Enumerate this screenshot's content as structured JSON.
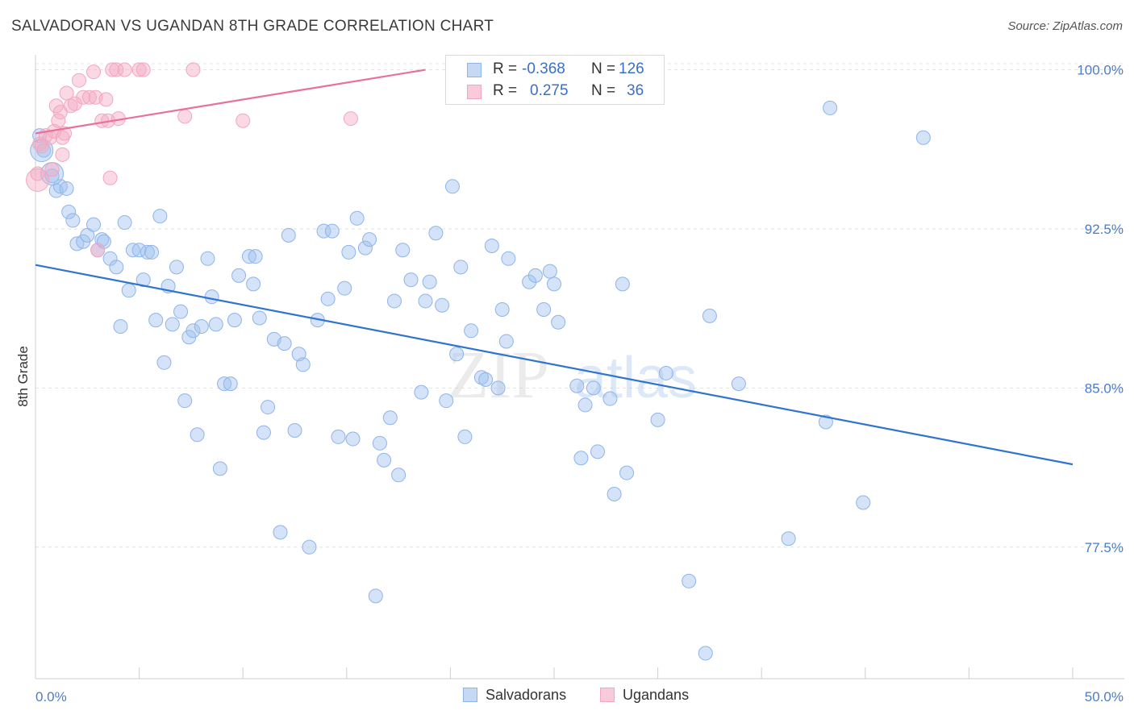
{
  "title": "SALVADORAN VS UGANDAN 8TH GRADE CORRELATION CHART",
  "source": "Source: ZipAtlas.com",
  "watermark": {
    "zip": "ZIP",
    "atlas": "atlas"
  },
  "legend_top": [
    {
      "r_label": "R =",
      "r_value": "-0.368",
      "n_label": "N =",
      "n_value": "126"
    },
    {
      "r_label": "R =",
      "r_value": "0.275",
      "n_label": "N =",
      "n_value": "36"
    }
  ],
  "chart_data": {
    "type": "scatter",
    "xlabel": "",
    "ylabel": "8th Grade",
    "xlim": [
      0,
      50
    ],
    "ylim": [
      71.3,
      100.4
    ],
    "x_tick_labels": {
      "left": "0.0%",
      "right": "50.0%"
    },
    "y_ticks": [
      100.0,
      92.5,
      85.0,
      77.5
    ],
    "y_tick_labels": [
      "100.0%",
      "92.5%",
      "85.0%",
      "77.5%"
    ],
    "grid": true,
    "legend_position": "bottom",
    "colors": {
      "salvadorans": "#8fb4ea",
      "ugandans": "#f2a6c0",
      "blue_line": "#2f74d0",
      "pink_line": "#e8709a"
    },
    "series": [
      {
        "name": "Salvadorans",
        "trend": {
          "x": [
            0,
            50
          ],
          "y": [
            90.8,
            81.4
          ]
        },
        "points": [
          [
            0.2,
            96.9
          ],
          [
            0.4,
            96.2
          ],
          [
            0.8,
            95.0
          ],
          [
            1.0,
            94.3
          ],
          [
            1.2,
            94.5
          ],
          [
            1.5,
            94.4
          ],
          [
            1.6,
            93.3
          ],
          [
            1.8,
            92.9
          ],
          [
            2.0,
            91.8
          ],
          [
            2.3,
            91.9
          ],
          [
            2.5,
            92.2
          ],
          [
            2.8,
            92.7
          ],
          [
            3.0,
            91.5
          ],
          [
            3.2,
            92.0
          ],
          [
            3.3,
            91.9
          ],
          [
            3.6,
            91.1
          ],
          [
            3.9,
            90.7
          ],
          [
            4.1,
            87.9
          ],
          [
            4.3,
            92.8
          ],
          [
            4.5,
            89.6
          ],
          [
            4.7,
            91.5
          ],
          [
            5.0,
            91.5
          ],
          [
            5.2,
            90.1
          ],
          [
            5.4,
            91.4
          ],
          [
            5.6,
            91.4
          ],
          [
            5.8,
            88.2
          ],
          [
            6.0,
            93.1
          ],
          [
            6.2,
            86.2
          ],
          [
            6.4,
            89.8
          ],
          [
            6.6,
            88.0
          ],
          [
            6.8,
            90.7
          ],
          [
            7.0,
            88.6
          ],
          [
            7.2,
            84.4
          ],
          [
            7.4,
            87.4
          ],
          [
            7.6,
            87.7
          ],
          [
            7.8,
            82.8
          ],
          [
            8.0,
            87.9
          ],
          [
            8.3,
            91.1
          ],
          [
            8.5,
            89.3
          ],
          [
            8.7,
            88.0
          ],
          [
            8.9,
            81.2
          ],
          [
            9.1,
            85.2
          ],
          [
            9.4,
            85.2
          ],
          [
            9.6,
            88.2
          ],
          [
            9.8,
            90.3
          ],
          [
            10.3,
            91.2
          ],
          [
            10.5,
            89.9
          ],
          [
            10.6,
            91.2
          ],
          [
            10.8,
            88.3
          ],
          [
            11.2,
            84.1
          ],
          [
            11.0,
            82.9
          ],
          [
            11.5,
            87.3
          ],
          [
            11.8,
            78.2
          ],
          [
            12.0,
            87.1
          ],
          [
            12.2,
            92.2
          ],
          [
            12.5,
            83.0
          ],
          [
            12.7,
            86.6
          ],
          [
            12.9,
            86.1
          ],
          [
            13.2,
            77.5
          ],
          [
            13.6,
            88.2
          ],
          [
            13.9,
            92.4
          ],
          [
            14.1,
            89.2
          ],
          [
            14.3,
            92.4
          ],
          [
            14.6,
            82.7
          ],
          [
            14.9,
            89.7
          ],
          [
            15.1,
            91.4
          ],
          [
            15.3,
            82.6
          ],
          [
            15.5,
            93.0
          ],
          [
            15.9,
            91.6
          ],
          [
            16.1,
            92.0
          ],
          [
            16.4,
            75.2
          ],
          [
            16.6,
            82.4
          ],
          [
            16.8,
            81.6
          ],
          [
            17.1,
            83.6
          ],
          [
            17.3,
            89.1
          ],
          [
            17.5,
            80.9
          ],
          [
            17.7,
            91.5
          ],
          [
            18.1,
            90.1
          ],
          [
            18.6,
            84.8
          ],
          [
            18.8,
            89.1
          ],
          [
            19.0,
            90.0
          ],
          [
            19.3,
            92.3
          ],
          [
            19.6,
            88.9
          ],
          [
            19.8,
            84.4
          ],
          [
            20.1,
            94.5
          ],
          [
            20.3,
            86.6
          ],
          [
            20.5,
            90.7
          ],
          [
            20.7,
            82.7
          ],
          [
            21.0,
            87.7
          ],
          [
            21.5,
            85.5
          ],
          [
            21.7,
            85.4
          ],
          [
            22.0,
            91.7
          ],
          [
            22.3,
            85.0
          ],
          [
            22.5,
            88.7
          ],
          [
            22.7,
            87.2
          ],
          [
            22.8,
            91.1
          ],
          [
            23.8,
            90.0
          ],
          [
            24.1,
            90.3
          ],
          [
            24.5,
            88.7
          ],
          [
            24.8,
            90.5
          ],
          [
            25.0,
            89.9
          ],
          [
            25.2,
            88.1
          ],
          [
            26.1,
            85.1
          ],
          [
            26.5,
            84.2
          ],
          [
            26.3,
            81.7
          ],
          [
            26.9,
            85.0
          ],
          [
            27.1,
            82.0
          ],
          [
            27.7,
            84.5
          ],
          [
            27.9,
            80.0
          ],
          [
            28.3,
            89.9
          ],
          [
            28.5,
            81.0
          ],
          [
            30.0,
            83.5
          ],
          [
            30.4,
            85.7
          ],
          [
            31.5,
            75.9
          ],
          [
            32.3,
            72.5
          ],
          [
            32.5,
            88.4
          ],
          [
            33.9,
            85.2
          ],
          [
            36.3,
            77.9
          ],
          [
            38.1,
            83.4
          ],
          [
            38.3,
            98.2
          ],
          [
            39.9,
            79.6
          ],
          [
            42.8,
            96.8
          ]
        ],
        "large_points": [
          [
            0.3,
            96.2
          ],
          [
            0.8,
            95.1
          ]
        ]
      },
      {
        "name": "Ugandans",
        "trend": {
          "x": [
            0,
            18.8
          ],
          "y": [
            97.0,
            100.0
          ]
        },
        "points": [
          [
            0.1,
            95.1
          ],
          [
            0.2,
            96.5
          ],
          [
            0.5,
            96.9
          ],
          [
            0.7,
            96.8
          ],
          [
            0.8,
            95.3
          ],
          [
            0.9,
            97.1
          ],
          [
            1.0,
            98.3
          ],
          [
            1.1,
            97.6
          ],
          [
            1.2,
            98.0
          ],
          [
            1.3,
            96.8
          ],
          [
            1.3,
            96.0
          ],
          [
            1.4,
            97.0
          ],
          [
            1.5,
            98.9
          ],
          [
            1.7,
            98.3
          ],
          [
            1.9,
            98.4
          ],
          [
            2.1,
            99.5
          ],
          [
            2.3,
            98.7
          ],
          [
            2.6,
            98.7
          ],
          [
            2.8,
            99.9
          ],
          [
            2.9,
            98.7
          ],
          [
            3.0,
            91.5
          ],
          [
            3.2,
            97.6
          ],
          [
            3.4,
            98.6
          ],
          [
            3.5,
            97.6
          ],
          [
            3.6,
            94.9
          ],
          [
            3.7,
            100.0
          ],
          [
            3.9,
            100.0
          ],
          [
            4.0,
            97.7
          ],
          [
            4.3,
            100.0
          ],
          [
            5.0,
            100.0
          ],
          [
            5.2,
            100.0
          ],
          [
            7.2,
            97.8
          ],
          [
            7.6,
            100.0
          ],
          [
            10.0,
            97.6
          ],
          [
            15.2,
            97.7
          ],
          [
            0.3,
            96.4
          ]
        ],
        "large_points": [
          [
            0.1,
            94.8
          ]
        ]
      }
    ]
  },
  "legend_bottom": [
    "Salvadorans",
    "Ugandans"
  ]
}
